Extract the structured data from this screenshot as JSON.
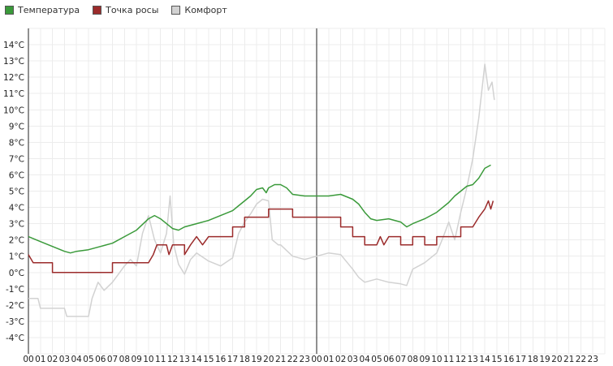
{
  "chart_data": {
    "type": "line",
    "title": "",
    "xlabel": "",
    "ylabel": "",
    "ylim": [
      -5,
      15
    ],
    "yticks": [
      -4,
      -3,
      -2,
      -1,
      0,
      1,
      2,
      3,
      4,
      5,
      6,
      7,
      8,
      9,
      10,
      11,
      12,
      13,
      14
    ],
    "ytick_labels": [
      "-4°C",
      "-3°C",
      "-2°C",
      "-1°C",
      "0°C",
      "1°C",
      "2°C",
      "3°C",
      "4°C",
      "5°C",
      "6°C",
      "7°C",
      "8°C",
      "9°C",
      "10°C",
      "11°C",
      "12°C",
      "13°C",
      "14°C"
    ],
    "x_unit": "hours since 00:00 of first day",
    "xlim": [
      0,
      48
    ],
    "xtick_labels": [
      "00",
      "01",
      "02",
      "03",
      "04",
      "05",
      "06",
      "07",
      "08",
      "09",
      "10",
      "11",
      "12",
      "13",
      "14",
      "15",
      "16",
      "17",
      "18",
      "19",
      "20",
      "21",
      "22",
      "23",
      "00",
      "01",
      "02",
      "03",
      "04",
      "05",
      "06",
      "07",
      "08",
      "09",
      "10",
      "11",
      "12",
      "13",
      "14",
      "15",
      "16",
      "17",
      "18",
      "19",
      "20",
      "21",
      "22",
      "23"
    ],
    "day_boundary_x": 24,
    "grid": true,
    "legend_position": "top-left",
    "series": [
      {
        "name": "Температура",
        "color": "#3a9a3a",
        "points": [
          [
            0,
            2.2
          ],
          [
            1,
            1.9
          ],
          [
            2,
            1.6
          ],
          [
            3,
            1.3
          ],
          [
            3.5,
            1.2
          ],
          [
            4,
            1.3
          ],
          [
            5,
            1.4
          ],
          [
            6,
            1.6
          ],
          [
            7,
            1.8
          ],
          [
            8,
            2.2
          ],
          [
            9,
            2.6
          ],
          [
            10,
            3.3
          ],
          [
            10.5,
            3.5
          ],
          [
            11,
            3.3
          ],
          [
            11.5,
            3.0
          ],
          [
            12,
            2.7
          ],
          [
            12.5,
            2.6
          ],
          [
            13,
            2.8
          ],
          [
            14,
            3.0
          ],
          [
            15,
            3.2
          ],
          [
            16,
            3.5
          ],
          [
            17,
            3.8
          ],
          [
            17.5,
            4.1
          ],
          [
            18,
            4.4
          ],
          [
            18.5,
            4.7
          ],
          [
            19,
            5.1
          ],
          [
            19.5,
            5.2
          ],
          [
            19.8,
            4.9
          ],
          [
            20,
            5.2
          ],
          [
            20.5,
            5.4
          ],
          [
            21,
            5.4
          ],
          [
            21.5,
            5.2
          ],
          [
            22,
            4.8
          ],
          [
            23,
            4.7
          ],
          [
            24,
            4.7
          ],
          [
            25,
            4.7
          ],
          [
            26,
            4.8
          ],
          [
            27,
            4.5
          ],
          [
            27.5,
            4.2
          ],
          [
            28,
            3.7
          ],
          [
            28.5,
            3.3
          ],
          [
            29,
            3.2
          ],
          [
            30,
            3.3
          ],
          [
            31,
            3.1
          ],
          [
            31.5,
            2.8
          ],
          [
            32,
            3.0
          ],
          [
            33,
            3.3
          ],
          [
            34,
            3.7
          ],
          [
            35,
            4.3
          ],
          [
            35.5,
            4.7
          ],
          [
            36,
            5.0
          ],
          [
            36.5,
            5.3
          ],
          [
            37,
            5.4
          ],
          [
            37.5,
            5.8
          ],
          [
            38,
            6.4
          ],
          [
            38.5,
            6.6
          ]
        ]
      },
      {
        "name": "Точка росы",
        "color": "#9b2b2b",
        "points": [
          [
            0,
            1.1
          ],
          [
            0.4,
            0.6
          ],
          [
            2,
            0.6
          ],
          [
            2,
            0
          ],
          [
            5,
            0
          ],
          [
            7,
            0
          ],
          [
            7,
            0.6
          ],
          [
            9,
            0.6
          ],
          [
            10,
            0.6
          ],
          [
            10.4,
            1.1
          ],
          [
            10.7,
            1.7
          ],
          [
            11.5,
            1.7
          ],
          [
            11.7,
            1.1
          ],
          [
            12,
            1.7
          ],
          [
            13,
            1.7
          ],
          [
            13,
            1.1
          ],
          [
            13.5,
            1.7
          ],
          [
            14,
            2.2
          ],
          [
            14.5,
            1.7
          ],
          [
            15,
            2.2
          ],
          [
            17,
            2.2
          ],
          [
            17,
            2.8
          ],
          [
            18,
            2.8
          ],
          [
            18,
            3.4
          ],
          [
            20,
            3.4
          ],
          [
            20,
            3.9
          ],
          [
            22,
            3.9
          ],
          [
            22,
            3.4
          ],
          [
            26,
            3.4
          ],
          [
            26,
            2.8
          ],
          [
            27,
            2.8
          ],
          [
            27,
            2.2
          ],
          [
            28,
            2.2
          ],
          [
            28,
            1.7
          ],
          [
            29,
            1.7
          ],
          [
            29.3,
            2.2
          ],
          [
            29.6,
            1.7
          ],
          [
            30,
            2.2
          ],
          [
            31,
            2.2
          ],
          [
            31,
            1.7
          ],
          [
            32,
            1.7
          ],
          [
            32,
            2.2
          ],
          [
            33,
            2.2
          ],
          [
            33,
            1.7
          ],
          [
            34,
            1.7
          ],
          [
            34,
            2.2
          ],
          [
            36,
            2.2
          ],
          [
            36,
            2.8
          ],
          [
            37,
            2.8
          ],
          [
            37.5,
            3.4
          ],
          [
            38,
            3.9
          ],
          [
            38.3,
            4.4
          ],
          [
            38.5,
            3.9
          ],
          [
            38.7,
            4.4
          ]
        ]
      },
      {
        "name": "Комфорт",
        "color": "#d2d2d2",
        "points": [
          [
            0,
            -1.6
          ],
          [
            0.8,
            -1.6
          ],
          [
            1,
            -2.2
          ],
          [
            3,
            -2.2
          ],
          [
            3.2,
            -2.7
          ],
          [
            5,
            -2.7
          ],
          [
            5.3,
            -1.6
          ],
          [
            5.8,
            -0.6
          ],
          [
            6.3,
            -1.1
          ],
          [
            7,
            -0.6
          ],
          [
            7.5,
            -0.1
          ],
          [
            8,
            0.4
          ],
          [
            8.5,
            0.8
          ],
          [
            9,
            0.4
          ],
          [
            9.5,
            2.4
          ],
          [
            10,
            3.5
          ],
          [
            10.5,
            2.0
          ],
          [
            11,
            1.2
          ],
          [
            11.5,
            2.4
          ],
          [
            11.8,
            4.7
          ],
          [
            12.1,
            1.7
          ],
          [
            12.5,
            0.5
          ],
          [
            13,
            -0.1
          ],
          [
            13.5,
            0.8
          ],
          [
            14,
            1.2
          ],
          [
            15,
            0.7
          ],
          [
            16,
            0.4
          ],
          [
            17,
            0.9
          ],
          [
            17.5,
            2.4
          ],
          [
            18,
            3.1
          ],
          [
            18.5,
            3.6
          ],
          [
            19,
            4.2
          ],
          [
            19.5,
            4.5
          ],
          [
            20,
            4.4
          ],
          [
            20.3,
            2.0
          ],
          [
            20.8,
            1.7
          ],
          [
            21,
            1.7
          ],
          [
            22,
            1.0
          ],
          [
            23,
            0.8
          ],
          [
            24,
            1.0
          ],
          [
            25,
            1.2
          ],
          [
            26,
            1.1
          ],
          [
            27,
            0.2
          ],
          [
            27.5,
            -0.3
          ],
          [
            28,
            -0.6
          ],
          [
            29,
            -0.4
          ],
          [
            30,
            -0.6
          ],
          [
            31,
            -0.7
          ],
          [
            31.5,
            -0.8
          ],
          [
            32,
            0.2
          ],
          [
            33,
            0.6
          ],
          [
            34,
            1.2
          ],
          [
            34.5,
            2.1
          ],
          [
            35,
            3.1
          ],
          [
            35.5,
            2.0
          ],
          [
            36,
            3.7
          ],
          [
            36.5,
            5.2
          ],
          [
            37,
            7.0
          ],
          [
            37.5,
            9.5
          ],
          [
            38,
            12.8
          ],
          [
            38.3,
            11.2
          ],
          [
            38.6,
            11.7
          ],
          [
            38.8,
            10.6
          ]
        ]
      }
    ]
  }
}
